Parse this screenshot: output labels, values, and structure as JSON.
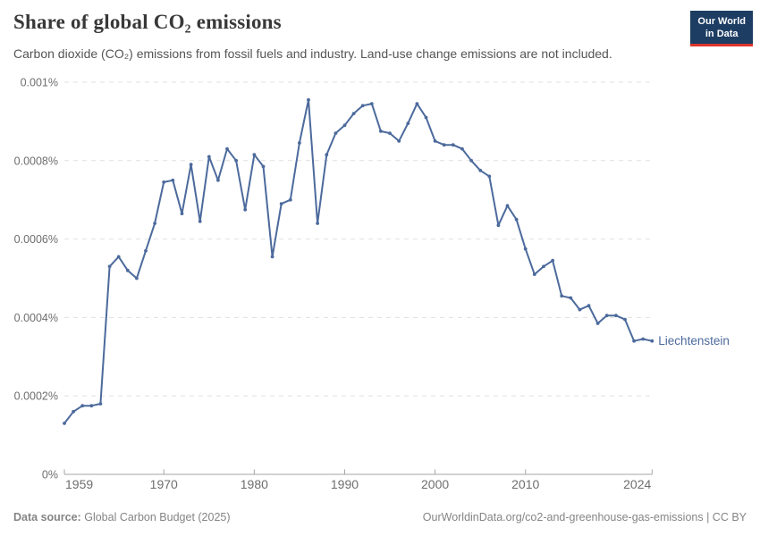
{
  "header": {
    "title": "Share of global CO₂ emissions",
    "subtitle": "Carbon dioxide (CO₂) emissions from fossil fuels and industry. Land-use change emissions are not included.",
    "logo": {
      "line1": "Our World",
      "line2": "in Data"
    }
  },
  "chart_data": {
    "type": "line",
    "title": "Share of global CO₂ emissions",
    "entity": "Liechtenstein",
    "grid": true,
    "legend_position": "end-of-line-label",
    "ylim": [
      0,
      0.001
    ],
    "unit": "%",
    "years": [
      1959,
      1960,
      1961,
      1962,
      1963,
      1964,
      1965,
      1966,
      1967,
      1968,
      1969,
      1970,
      1971,
      1972,
      1973,
      1974,
      1975,
      1976,
      1977,
      1978,
      1979,
      1980,
      1981,
      1982,
      1983,
      1984,
      1985,
      1986,
      1987,
      1988,
      1989,
      1990,
      1991,
      1992,
      1993,
      1994,
      1995,
      1996,
      1997,
      1998,
      1999,
      2000,
      2001,
      2002,
      2003,
      2004,
      2005,
      2006,
      2007,
      2008,
      2009,
      2010,
      2011,
      2012,
      2013,
      2014,
      2015,
      2016,
      2017,
      2018,
      2019,
      2020,
      2021,
      2022,
      2023,
      2024
    ],
    "series": [
      {
        "name": "Liechtenstein",
        "color": "#4c6a9c",
        "values": [
          0.00013,
          0.00016,
          0.000175,
          0.000175,
          0.00018,
          0.00053,
          0.000555,
          0.00052,
          0.0005,
          0.00057,
          0.00064,
          0.000745,
          0.00075,
          0.000665,
          0.00079,
          0.000645,
          0.00081,
          0.00075,
          0.00083,
          0.0008,
          0.000675,
          0.000815,
          0.000785,
          0.000555,
          0.00069,
          0.0007,
          0.000845,
          0.000955,
          0.00064,
          0.000815,
          0.00087,
          0.00089,
          0.00092,
          0.00094,
          0.000945,
          0.000875,
          0.00087,
          0.00085,
          0.000895,
          0.000945,
          0.00091,
          0.00085,
          0.00084,
          0.00084,
          0.00083,
          0.0008,
          0.000775,
          0.00076,
          0.000635,
          0.000685,
          0.00065,
          0.000575,
          0.00051,
          0.00053,
          0.000545,
          0.000455,
          0.00045,
          0.00042,
          0.00043,
          0.000385,
          0.000405,
          0.000405,
          0.000395,
          0.00034,
          0.000345,
          0.00034
        ]
      }
    ],
    "yticks": [
      {
        "value": 0.001,
        "label": "0.001%"
      },
      {
        "value": 0.0008,
        "label": "0.0008%"
      },
      {
        "value": 0.0006,
        "label": "0.0006%"
      },
      {
        "value": 0.0004,
        "label": "0.0004%"
      },
      {
        "value": 0.0002,
        "label": "0.0002%"
      },
      {
        "value": 0,
        "label": "0%"
      }
    ],
    "xticks": [
      {
        "value": 1959,
        "label": "1959",
        "align": "start"
      },
      {
        "value": 1970,
        "label": "1970",
        "align": "middle"
      },
      {
        "value": 1980,
        "label": "1980",
        "align": "middle"
      },
      {
        "value": 1990,
        "label": "1990",
        "align": "middle"
      },
      {
        "value": 2000,
        "label": "2000",
        "align": "middle"
      },
      {
        "value": 2010,
        "label": "2010",
        "align": "middle"
      },
      {
        "value": 2024,
        "label": "2024",
        "align": "end"
      }
    ]
  },
  "footer": {
    "source_label": "Data source:",
    "source_value": "Global Carbon Budget (2025)",
    "right": "OurWorldinData.org/co2-and-greenhouse-gas-emissions | CC BY"
  }
}
